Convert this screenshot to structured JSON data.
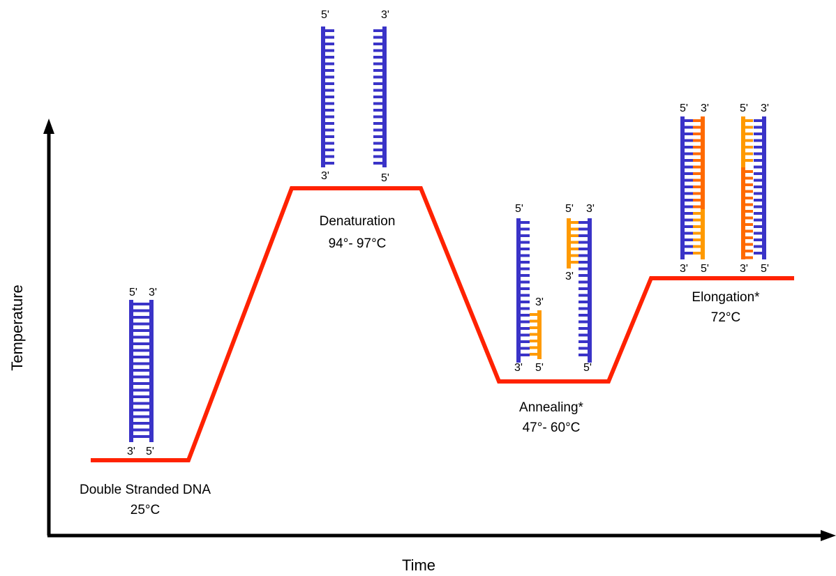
{
  "axes": {
    "x_label": "Time",
    "y_label": "Temperature"
  },
  "stages": [
    {
      "name": "Double Stranded DNA",
      "temperature": "25°C",
      "end_labels": [
        "5'",
        "3'",
        "3'",
        "5'"
      ]
    },
    {
      "name": "Denaturation",
      "temperature": "94°- 97°C",
      "end_labels": [
        "5'",
        "3'",
        "3'",
        "5'"
      ]
    },
    {
      "name": "Annealing*",
      "temperature": "47°- 60°C",
      "end_labels": [
        "5'",
        "3'",
        "3'",
        "5'",
        "5'",
        "3'",
        "3'",
        "5'"
      ]
    },
    {
      "name": "Elongation*",
      "temperature": "72°C",
      "end_labels": [
        "5'",
        "3'",
        "3'",
        "5'",
        "5'",
        "3'",
        "3'",
        "5'"
      ]
    }
  ]
}
